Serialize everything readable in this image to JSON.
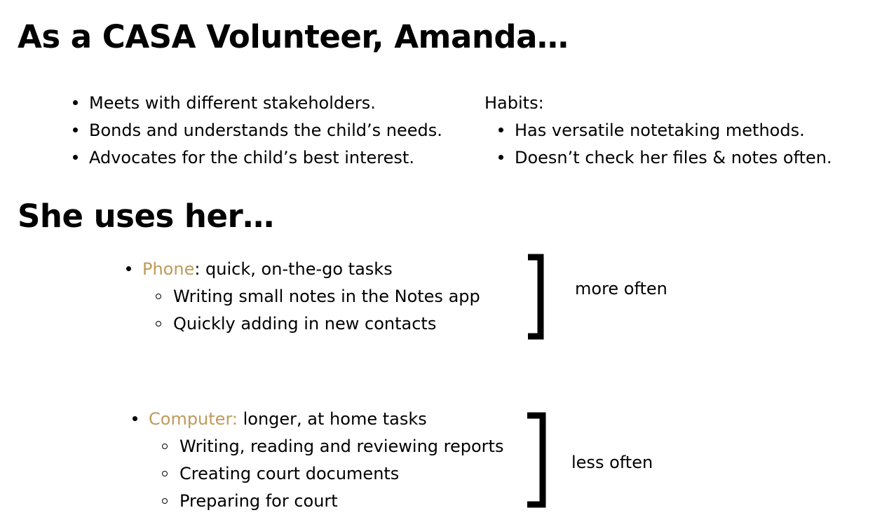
{
  "title": "As a CASA Volunteer, Amanda…",
  "roles": [
    "Meets with different stakeholders.",
    "Bonds and understands the child’s needs.",
    "Advocates for the child’s best interest."
  ],
  "habits": {
    "heading": "Habits:",
    "items": [
      "Has versatile notetaking methods.",
      "Doesn’t check her files & notes often."
    ]
  },
  "subtitle": "She uses her…",
  "devices": [
    {
      "name": "Phone",
      "description": ": quick, on-the-go tasks",
      "tasks": [
        "Writing small notes in the Notes app",
        "Quickly adding in new contacts"
      ],
      "frequency": "more often"
    },
    {
      "name": "Computer:",
      "description": " longer, at home tasks",
      "tasks": [
        "Writing, reading and reviewing reports",
        "Creating court documents",
        "Preparing for court"
      ],
      "frequency": "less often"
    }
  ],
  "colors": {
    "accent": "#c09a5b",
    "text": "#000000"
  }
}
